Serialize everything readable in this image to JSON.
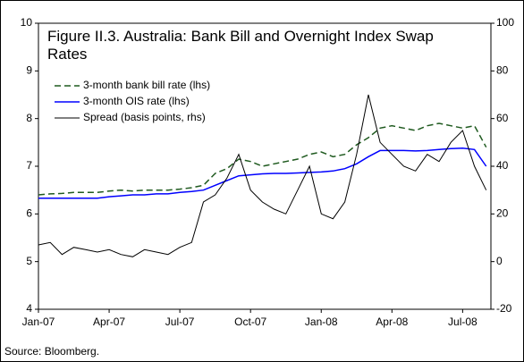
{
  "chart_data": {
    "type": "line",
    "title": "Figure II.3. Australia: Bank Bill and Overnight Index Swap Rates",
    "source": "Source: Bloomberg.",
    "x": [
      0,
      0.5,
      1,
      1.5,
      2,
      2.5,
      3,
      3.5,
      4,
      4.5,
      5,
      5.5,
      6,
      6.5,
      7,
      7.5,
      8,
      8.5,
      9,
      9.5,
      10,
      10.5,
      11,
      11.5,
      12,
      12.5,
      13,
      13.5,
      14,
      14.5,
      15,
      15.5,
      16,
      16.5,
      17,
      17.5,
      18,
      18.5,
      19
    ],
    "xlim": [
      0,
      19.2
    ],
    "xticks": [
      {
        "value": 0,
        "label": "Jan-07"
      },
      {
        "value": 3,
        "label": "Apr-07"
      },
      {
        "value": 6,
        "label": "Jul-07"
      },
      {
        "value": 9,
        "label": "Oct-07"
      },
      {
        "value": 12,
        "label": "Jan-08"
      },
      {
        "value": 15,
        "label": "Apr-08"
      },
      {
        "value": 18,
        "label": "Jul-08"
      }
    ],
    "ylim": [
      4,
      10
    ],
    "yticks": [
      4,
      5,
      6,
      7,
      8,
      9,
      10
    ],
    "y2lim": [
      -20,
      100
    ],
    "y2ticks": [
      -20,
      0,
      20,
      40,
      60,
      80,
      100
    ],
    "legend": "upper left",
    "series": [
      {
        "name": "3-month bank bill rate (lhs)",
        "color": "#1f5a1f",
        "dash": true,
        "values": [
          6.4,
          6.42,
          6.43,
          6.45,
          6.45,
          6.45,
          6.48,
          6.5,
          6.48,
          6.5,
          6.5,
          6.5,
          6.52,
          6.55,
          6.6,
          6.85,
          6.95,
          7.15,
          7.1,
          7.0,
          7.05,
          7.1,
          7.15,
          7.25,
          7.3,
          7.2,
          7.25,
          7.45,
          7.6,
          7.8,
          7.85,
          7.8,
          7.75,
          7.85,
          7.9,
          7.85,
          7.8,
          7.85,
          7.4
        ]
      },
      {
        "name": "3-month OIS rate (lhs)",
        "color": "#0000ff",
        "values": [
          6.33,
          6.33,
          6.33,
          6.33,
          6.33,
          6.33,
          6.36,
          6.38,
          6.4,
          6.4,
          6.42,
          6.42,
          6.45,
          6.47,
          6.5,
          6.6,
          6.7,
          6.8,
          6.82,
          6.84,
          6.85,
          6.85,
          6.86,
          6.87,
          6.88,
          6.9,
          6.95,
          7.05,
          7.2,
          7.33,
          7.33,
          7.33,
          7.32,
          7.33,
          7.35,
          7.37,
          7.38,
          7.35,
          7.0
        ]
      },
      {
        "name": "Spread (basis points, rhs)",
        "color": "#000000",
        "axis": "y2",
        "values": [
          7,
          8,
          3,
          6,
          5,
          4,
          5,
          3,
          2,
          5,
          4,
          3,
          6,
          8,
          25,
          28,
          35,
          45,
          30,
          25,
          22,
          20,
          30,
          40,
          20,
          18,
          25,
          45,
          70,
          50,
          45,
          40,
          38,
          45,
          42,
          50,
          55,
          40,
          30
        ]
      }
    ]
  }
}
